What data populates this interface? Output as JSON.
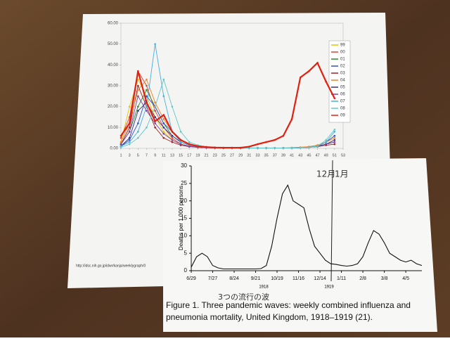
{
  "chart_data": [
    {
      "type": "line",
      "x": [
        1,
        3,
        5,
        7,
        9,
        11,
        13,
        15,
        17,
        19,
        21,
        23,
        25,
        27,
        29,
        31,
        33,
        35,
        37,
        39,
        41,
        43,
        45,
        47,
        49,
        51
      ],
      "xlim": [
        1,
        53
      ],
      "xticks": [
        1,
        3,
        5,
        7,
        9,
        11,
        13,
        15,
        17,
        19,
        21,
        23,
        25,
        27,
        29,
        31,
        33,
        35,
        37,
        39,
        41,
        43,
        45,
        47,
        49,
        51,
        53
      ],
      "ylim": [
        0,
        60
      ],
      "yticks": [
        {
          "value": 0,
          "label": "0.00"
        },
        {
          "value": 10,
          "label": "10.00"
        },
        {
          "value": 20,
          "label": "20.00"
        },
        {
          "value": 30,
          "label": "30.00"
        },
        {
          "value": 40,
          "label": "40.00"
        },
        {
          "value": 50,
          "label": "50.00"
        },
        {
          "value": 60,
          "label": "60.00"
        }
      ],
      "grid": false,
      "legend": "right",
      "source": "http://idsc.nih.go.jp/idwr/kanja/weeklygraph/0",
      "series": [
        {
          "name": "99",
          "color": "#e6c300",
          "values": [
            3,
            20,
            33,
            25,
            15,
            8,
            4,
            2,
            1,
            0.5,
            0.3,
            0.2,
            0.2,
            0.2,
            0.2,
            0.2,
            0.2,
            0.2,
            0.2,
            0.2,
            0.3,
            0.5,
            0.8,
            1.5,
            3,
            6
          ]
        },
        {
          "name": "00",
          "color": "#e04030",
          "values": [
            5,
            15,
            37,
            30,
            18,
            10,
            5,
            2,
            1,
            0.5,
            0.3,
            0.2,
            0.2,
            0.2,
            0.2,
            0.2,
            0.2,
            0.2,
            0.2,
            0.2,
            0.2,
            0.3,
            0.5,
            1,
            2,
            4
          ]
        },
        {
          "name": "01",
          "color": "#2a8a2a",
          "values": [
            2,
            8,
            20,
            28,
            20,
            12,
            6,
            3,
            1.5,
            0.8,
            0.5,
            0.3,
            0.2,
            0.2,
            0.2,
            0.2,
            0.2,
            0.2,
            0.2,
            0.2,
            0.2,
            0.3,
            0.5,
            1,
            2,
            3
          ]
        },
        {
          "name": "02",
          "color": "#3050d0",
          "values": [
            1,
            4,
            12,
            25,
            20,
            12,
            8,
            4,
            2,
            1,
            0.5,
            0.3,
            0.2,
            0.2,
            0.2,
            0.2,
            0.2,
            0.2,
            0.2,
            0.2,
            0.2,
            0.3,
            0.5,
            1,
            3,
            6
          ]
        },
        {
          "name": "03",
          "color": "#a02020",
          "values": [
            2,
            10,
            30,
            20,
            10,
            5,
            3,
            1.5,
            0.8,
            0.5,
            0.3,
            0.2,
            0.2,
            0.2,
            0.2,
            0.2,
            0.2,
            0.2,
            0.2,
            0.2,
            0.2,
            0.3,
            0.5,
            0.8,
            1.5,
            2
          ]
        },
        {
          "name": "04",
          "color": "#f08020",
          "values": [
            3,
            12,
            28,
            33,
            22,
            14,
            8,
            4,
            2,
            1,
            0.5,
            0.3,
            0.2,
            0.2,
            0.2,
            0.2,
            0.2,
            0.2,
            0.2,
            0.2,
            0.3,
            0.5,
            0.8,
            1.5,
            3,
            5
          ]
        },
        {
          "name": "05",
          "color": "#303080",
          "values": [
            1,
            5,
            18,
            22,
            15,
            10,
            6,
            3,
            1.5,
            0.8,
            0.5,
            0.3,
            0.2,
            0.2,
            0.2,
            0.2,
            0.2,
            0.2,
            0.2,
            0.2,
            0.2,
            0.3,
            0.5,
            1,
            2,
            4
          ]
        },
        {
          "name": "06",
          "color": "#8040a0",
          "values": [
            2,
            8,
            25,
            18,
            12,
            7,
            4,
            2,
            1,
            0.5,
            0.3,
            0.2,
            0.2,
            0.2,
            0.2,
            0.2,
            0.2,
            0.2,
            0.2,
            0.2,
            0.2,
            0.3,
            0.5,
            1,
            2,
            3
          ]
        },
        {
          "name": "07",
          "color": "#40b0e0",
          "values": [
            1,
            3,
            8,
            20,
            50,
            25,
            8,
            3,
            1.5,
            0.8,
            0.5,
            0.3,
            0.2,
            0.2,
            0.2,
            0.2,
            0.2,
            0.2,
            0.2,
            0.2,
            0.2,
            0.3,
            0.5,
            1,
            3,
            8
          ]
        },
        {
          "name": "08",
          "color": "#60c8c8",
          "values": [
            0.5,
            2,
            5,
            10,
            20,
            33,
            20,
            8,
            3,
            1.5,
            0.8,
            0.5,
            0.3,
            0.2,
            0.2,
            0.2,
            0.2,
            0.2,
            0.2,
            0.2,
            0.2,
            0.3,
            0.5,
            1,
            4,
            9
          ]
        },
        {
          "name": "09",
          "color": "#e02010",
          "values": [
            6,
            12,
            37,
            22,
            13,
            16,
            8,
            4,
            2,
            1,
            0.6,
            0.4,
            0.3,
            0.3,
            0.3,
            0.8,
            2,
            3,
            4,
            6,
            14,
            34,
            37,
            41,
            32,
            24
          ]
        }
      ]
    },
    {
      "type": "line",
      "ylabel": "Deaths per 1,000 persons",
      "categories": [
        "6/29",
        null,
        null,
        null,
        "7/27",
        null,
        null,
        null,
        "8/24",
        null,
        null,
        null,
        "9/21",
        null,
        null,
        null,
        "10/19",
        null,
        null,
        null,
        "11/16",
        null,
        null,
        null,
        "12/14",
        null,
        null,
        null,
        "1/11",
        null,
        null,
        null,
        "2/8",
        null,
        null,
        null,
        "3/8",
        null,
        null,
        null,
        "4/5",
        null,
        null,
        null
      ],
      "values": [
        1,
        4,
        5,
        4,
        1.5,
        0.8,
        0.5,
        0.5,
        0.5,
        0.5,
        0.5,
        0.5,
        0.5,
        0.6,
        1.5,
        7,
        15,
        22,
        24.5,
        20,
        19,
        18,
        12,
        7,
        5,
        3,
        2,
        1.8,
        1.5,
        1.3,
        1.5,
        2,
        4,
        8,
        11.5,
        10.5,
        8,
        5,
        4,
        3,
        2.5,
        3,
        2,
        1.5
      ],
      "color": "#111111",
      "ylim": [
        0,
        30
      ],
      "yticks": [
        0,
        5,
        10,
        15,
        20,
        25,
        30
      ],
      "x_group_labels": [
        "1918",
        "1919"
      ],
      "annotations": [
        "12月",
        "1月",
        "3つの流行の波"
      ],
      "caption": "Figure 1. Three pandemic waves: weekly combined influenza and pneumonia mortality, United Kingdom, 1918–1919 (21)."
    }
  ]
}
